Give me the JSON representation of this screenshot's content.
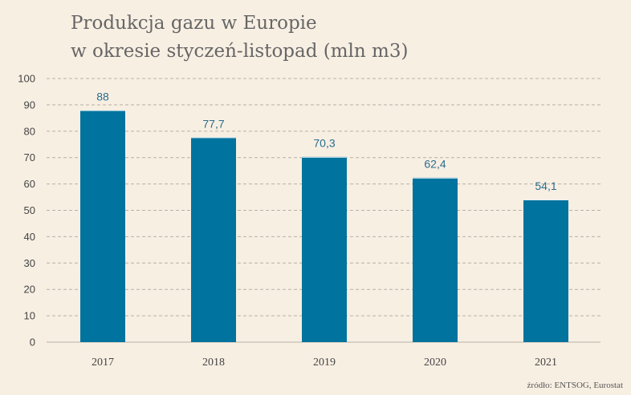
{
  "title_line1": "Produkcja gazu w Europie",
  "title_line2": "w okresie styczeń-listopad (mln m3)",
  "source": "źródło: ENTSOG, Eurostat",
  "colors": {
    "bar": "#00739e",
    "background": "#f8efe3",
    "label": "#2a6e8c",
    "grid": "#b8b0a6"
  },
  "chart_data": {
    "type": "bar",
    "categories": [
      "2017",
      "2018",
      "2019",
      "2020",
      "2021"
    ],
    "values": [
      88,
      77.7,
      70.3,
      62.4,
      54.1
    ],
    "data_labels": [
      "88",
      "77,7",
      "70,3",
      "62,4",
      "54,1"
    ],
    "title": "Produkcja gazu w Europie w okresie styczeń-listopad (mln m3)",
    "xlabel": "",
    "ylabel": "",
    "ylim": [
      0,
      100
    ],
    "yticks": [
      0,
      10,
      20,
      30,
      40,
      50,
      60,
      70,
      80,
      90,
      100
    ],
    "grid": true,
    "legend": "none"
  }
}
